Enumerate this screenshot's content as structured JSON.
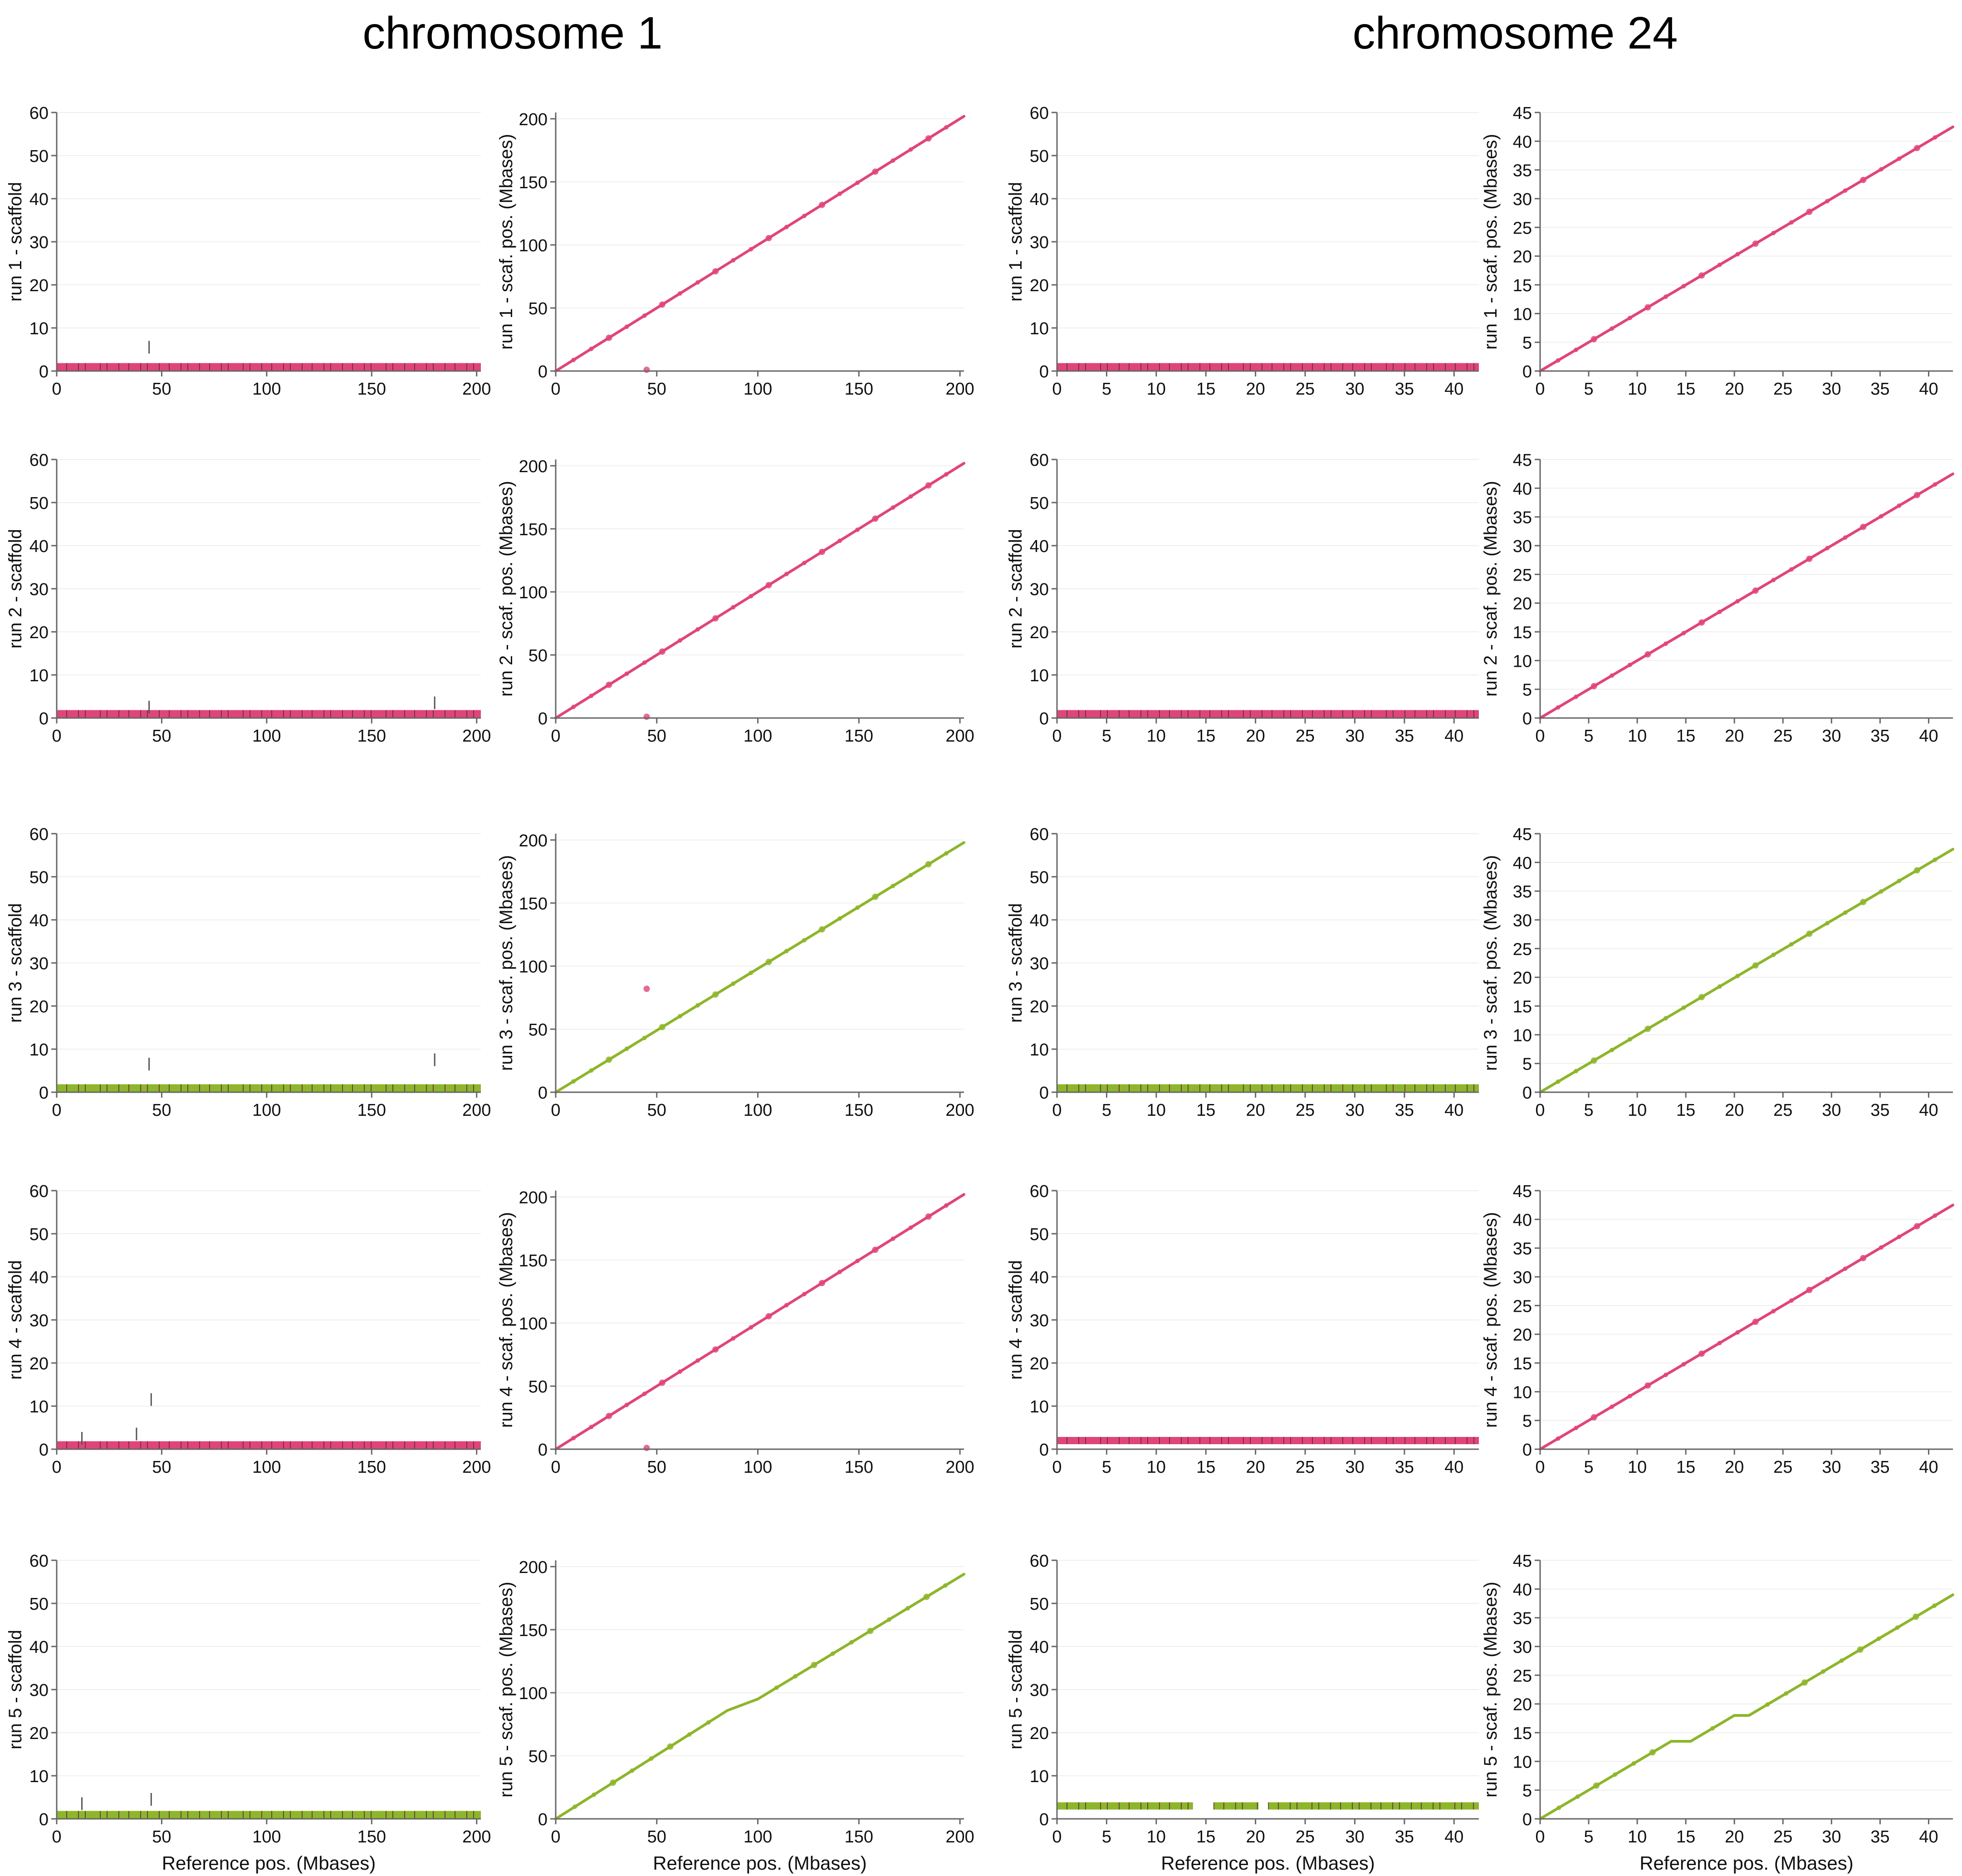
{
  "titles": {
    "chr1": "chromosome 1",
    "chr24": "chromosome 24"
  },
  "colors": {
    "pink": "#e0457a",
    "green": "#8db62a",
    "track": "#5b2a3d",
    "axis": "#666666",
    "grid": "#efefef"
  },
  "chart_data": [
    {
      "type": "scatter",
      "chromosome": "chromosome 1",
      "run": 1,
      "plot": "scaffold",
      "color": "pink",
      "xlabel": "",
      "ylabel": "run 1 - scaffold",
      "xlim": [
        0,
        202
      ],
      "ylim": [
        0,
        60
      ],
      "xticks": [
        0,
        50,
        100,
        150,
        200
      ],
      "yticks": [
        0,
        10,
        20,
        30,
        40,
        50,
        60
      ],
      "series": [
        {
          "points": [
            [
              0,
              1
            ],
            [
              202,
              1
            ]
          ]
        }
      ],
      "outliers": [
        [
          44,
          7
        ]
      ]
    },
    {
      "type": "line",
      "chromosome": "chromosome 1",
      "run": 1,
      "plot": "position",
      "color": "pink",
      "xlabel": "",
      "ylabel": "run 1 - scaf. pos. (Mbases)",
      "xlim": [
        0,
        202
      ],
      "ylim": [
        0,
        205
      ],
      "xticks": [
        0,
        50,
        100,
        150,
        200
      ],
      "yticks": [
        0,
        50,
        100,
        150,
        200
      ],
      "series": [
        {
          "points": [
            [
              0,
              0
            ],
            [
              202,
              202
            ]
          ]
        }
      ],
      "outliers": [
        [
          45,
          1
        ]
      ]
    },
    {
      "type": "scatter",
      "chromosome": "chromosome 24",
      "run": 1,
      "plot": "scaffold",
      "color": "pink",
      "xlabel": "",
      "ylabel": "run 1 - scaffold",
      "xlim": [
        0,
        42.5
      ],
      "ylim": [
        0,
        60
      ],
      "xticks": [
        0,
        5,
        10,
        15,
        20,
        25,
        30,
        35,
        40
      ],
      "yticks": [
        0,
        10,
        20,
        30,
        40,
        50,
        60
      ],
      "series": [
        {
          "points": [
            [
              0,
              1
            ],
            [
              42.5,
              1
            ]
          ]
        }
      ],
      "outliers": []
    },
    {
      "type": "line",
      "chromosome": "chromosome 24",
      "run": 1,
      "plot": "position",
      "color": "pink",
      "xlabel": "",
      "ylabel": "run 1 - scaf. pos. (Mbases)",
      "xlim": [
        0,
        42.5
      ],
      "ylim": [
        0,
        45
      ],
      "xticks": [
        0,
        5,
        10,
        15,
        20,
        25,
        30,
        35,
        40
      ],
      "yticks": [
        0,
        5,
        10,
        15,
        20,
        25,
        30,
        35,
        40,
        45
      ],
      "series": [
        {
          "points": [
            [
              0,
              0
            ],
            [
              42.5,
              42.5
            ]
          ]
        }
      ],
      "outliers": []
    },
    {
      "type": "scatter",
      "chromosome": "chromosome 1",
      "run": 2,
      "plot": "scaffold",
      "color": "pink",
      "xlabel": "",
      "ylabel": "run 2 - scaffold",
      "xlim": [
        0,
        202
      ],
      "ylim": [
        0,
        60
      ],
      "xticks": [
        0,
        50,
        100,
        150,
        200
      ],
      "yticks": [
        0,
        10,
        20,
        30,
        40,
        50,
        60
      ],
      "series": [
        {
          "points": [
            [
              0,
              1
            ],
            [
              202,
              1
            ]
          ]
        }
      ],
      "outliers": [
        [
          44,
          4
        ],
        [
          180,
          5
        ]
      ]
    },
    {
      "type": "line",
      "chromosome": "chromosome 1",
      "run": 2,
      "plot": "position",
      "color": "pink",
      "xlabel": "",
      "ylabel": "run 2 - scaf. pos. (Mbases)",
      "xlim": [
        0,
        202
      ],
      "ylim": [
        0,
        205
      ],
      "xticks": [
        0,
        50,
        100,
        150,
        200
      ],
      "yticks": [
        0,
        50,
        100,
        150,
        200
      ],
      "series": [
        {
          "points": [
            [
              0,
              0
            ],
            [
              202,
              202
            ]
          ]
        }
      ],
      "outliers": [
        [
          45,
          1
        ]
      ]
    },
    {
      "type": "scatter",
      "chromosome": "chromosome 24",
      "run": 2,
      "plot": "scaffold",
      "color": "pink",
      "xlabel": "",
      "ylabel": "run 2 - scaffold",
      "xlim": [
        0,
        42.5
      ],
      "ylim": [
        0,
        60
      ],
      "xticks": [
        0,
        5,
        10,
        15,
        20,
        25,
        30,
        35,
        40
      ],
      "yticks": [
        0,
        10,
        20,
        30,
        40,
        50,
        60
      ],
      "series": [
        {
          "points": [
            [
              0,
              1
            ],
            [
              42.5,
              1
            ]
          ]
        }
      ],
      "outliers": []
    },
    {
      "type": "line",
      "chromosome": "chromosome 24",
      "run": 2,
      "plot": "position",
      "color": "pink",
      "xlabel": "",
      "ylabel": "run 2 - scaf. pos. (Mbases)",
      "xlim": [
        0,
        42.5
      ],
      "ylim": [
        0,
        45
      ],
      "xticks": [
        0,
        5,
        10,
        15,
        20,
        25,
        30,
        35,
        40
      ],
      "yticks": [
        0,
        5,
        10,
        15,
        20,
        25,
        30,
        35,
        40,
        45
      ],
      "series": [
        {
          "points": [
            [
              0,
              0
            ],
            [
              42.5,
              42.5
            ]
          ]
        }
      ],
      "outliers": []
    },
    {
      "type": "scatter",
      "chromosome": "chromosome 1",
      "run": 3,
      "plot": "scaffold",
      "color": "green",
      "xlabel": "",
      "ylabel": "run 3 - scaffold",
      "xlim": [
        0,
        202
      ],
      "ylim": [
        0,
        60
      ],
      "xticks": [
        0,
        50,
        100,
        150,
        200
      ],
      "yticks": [
        0,
        10,
        20,
        30,
        40,
        50,
        60
      ],
      "series": [
        {
          "points": [
            [
              0,
              1
            ],
            [
              202,
              1
            ]
          ]
        }
      ],
      "outliers": [
        [
          44,
          8
        ],
        [
          180,
          9
        ]
      ]
    },
    {
      "type": "line",
      "chromosome": "chromosome 1",
      "run": 3,
      "plot": "position",
      "color": "green",
      "xlabel": "",
      "ylabel": "run 3 - scaf. pos. (Mbases)",
      "xlim": [
        0,
        202
      ],
      "ylim": [
        0,
        205
      ],
      "xticks": [
        0,
        50,
        100,
        150,
        200
      ],
      "yticks": [
        0,
        50,
        100,
        150,
        200
      ],
      "series": [
        {
          "points": [
            [
              0,
              0
            ],
            [
              202,
              198
            ]
          ]
        }
      ],
      "outliers": [
        [
          45,
          82
        ]
      ]
    },
    {
      "type": "scatter",
      "chromosome": "chromosome 24",
      "run": 3,
      "plot": "scaffold",
      "color": "green",
      "xlabel": "",
      "ylabel": "run 3 - scaffold",
      "xlim": [
        0,
        42.5
      ],
      "ylim": [
        0,
        60
      ],
      "xticks": [
        0,
        5,
        10,
        15,
        20,
        25,
        30,
        35,
        40
      ],
      "yticks": [
        0,
        10,
        20,
        30,
        40,
        50,
        60
      ],
      "series": [
        {
          "points": [
            [
              0,
              1
            ],
            [
              42.5,
              1
            ]
          ]
        }
      ],
      "outliers": []
    },
    {
      "type": "line",
      "chromosome": "chromosome 24",
      "run": 3,
      "plot": "position",
      "color": "green",
      "xlabel": "",
      "ylabel": "run 3 - scaf. pos. (Mbases)",
      "xlim": [
        0,
        42.5
      ],
      "ylim": [
        0,
        45
      ],
      "xticks": [
        0,
        5,
        10,
        15,
        20,
        25,
        30,
        35,
        40
      ],
      "yticks": [
        0,
        5,
        10,
        15,
        20,
        25,
        30,
        35,
        40,
        45
      ],
      "series": [
        {
          "points": [
            [
              0,
              0
            ],
            [
              42.5,
              42.3
            ]
          ]
        }
      ],
      "outliers": []
    },
    {
      "type": "scatter",
      "chromosome": "chromosome 1",
      "run": 4,
      "plot": "scaffold",
      "color": "pink",
      "xlabel": "",
      "ylabel": "run 4 - scaffold",
      "xlim": [
        0,
        202
      ],
      "ylim": [
        0,
        60
      ],
      "xticks": [
        0,
        50,
        100,
        150,
        200
      ],
      "yticks": [
        0,
        10,
        20,
        30,
        40,
        50,
        60
      ],
      "series": [
        {
          "points": [
            [
              0,
              1
            ],
            [
              202,
              1
            ]
          ]
        }
      ],
      "outliers": [
        [
          12,
          4
        ],
        [
          38,
          5
        ],
        [
          45,
          13
        ]
      ]
    },
    {
      "type": "line",
      "chromosome": "chromosome 1",
      "run": 4,
      "plot": "position",
      "color": "pink",
      "xlabel": "",
      "ylabel": "run 4 - scaf. pos. (Mbases)",
      "xlim": [
        0,
        202
      ],
      "ylim": [
        0,
        205
      ],
      "xticks": [
        0,
        50,
        100,
        150,
        200
      ],
      "yticks": [
        0,
        50,
        100,
        150,
        200
      ],
      "series": [
        {
          "points": [
            [
              0,
              0
            ],
            [
              202,
              202
            ]
          ]
        }
      ],
      "outliers": [
        [
          45,
          1
        ]
      ]
    },
    {
      "type": "scatter",
      "chromosome": "chromosome 24",
      "run": 4,
      "plot": "scaffold",
      "color": "pink",
      "xlabel": "",
      "ylabel": "run 4 - scaffold",
      "xlim": [
        0,
        42.5
      ],
      "ylim": [
        0,
        60
      ],
      "xticks": [
        0,
        5,
        10,
        15,
        20,
        25,
        30,
        35,
        40
      ],
      "yticks": [
        0,
        10,
        20,
        30,
        40,
        50,
        60
      ],
      "series": [
        {
          "points": [
            [
              0,
              2
            ],
            [
              42.5,
              2
            ]
          ]
        }
      ],
      "outliers": []
    },
    {
      "type": "line",
      "chromosome": "chromosome 24",
      "run": 4,
      "plot": "position",
      "color": "pink",
      "xlabel": "",
      "ylabel": "run 4 - scaf. pos. (Mbases)",
      "xlim": [
        0,
        42.5
      ],
      "ylim": [
        0,
        45
      ],
      "xticks": [
        0,
        5,
        10,
        15,
        20,
        25,
        30,
        35,
        40
      ],
      "yticks": [
        0,
        5,
        10,
        15,
        20,
        25,
        30,
        35,
        40,
        45
      ],
      "series": [
        {
          "points": [
            [
              0,
              0
            ],
            [
              42.5,
              42.5
            ]
          ]
        }
      ],
      "outliers": []
    },
    {
      "type": "scatter",
      "chromosome": "chromosome 1",
      "run": 5,
      "plot": "scaffold",
      "color": "green",
      "xlabel": "Reference pos. (Mbases)",
      "ylabel": "run 5 - scaffold",
      "xlim": [
        0,
        202
      ],
      "ylim": [
        0,
        60
      ],
      "xticks": [
        0,
        50,
        100,
        150,
        200
      ],
      "yticks": [
        0,
        10,
        20,
        30,
        40,
        50,
        60
      ],
      "series": [
        {
          "points": [
            [
              0,
              1
            ],
            [
              202,
              1
            ]
          ]
        }
      ],
      "outliers": [
        [
          12,
          5
        ],
        [
          45,
          6
        ]
      ]
    },
    {
      "type": "line",
      "chromosome": "chromosome 1",
      "run": 5,
      "plot": "position",
      "color": "green",
      "xlabel": "Reference pos. (Mbases)",
      "ylabel": "run 5 - scaf. pos. (Mbases)",
      "xlim": [
        0,
        202
      ],
      "ylim": [
        0,
        205
      ],
      "xticks": [
        0,
        50,
        100,
        150,
        200
      ],
      "yticks": [
        0,
        50,
        100,
        150,
        200
      ],
      "series": [
        {
          "points": [
            [
              0,
              0
            ],
            [
              85,
              86
            ],
            [
              100,
              95
            ],
            [
              202,
              194
            ]
          ]
        }
      ],
      "outliers": []
    },
    {
      "type": "scatter",
      "chromosome": "chromosome 24",
      "run": 5,
      "plot": "scaffold",
      "color": "green",
      "xlabel": "Reference pos. (Mbases)",
      "ylabel": "run 5 - scaffold",
      "xlim": [
        0,
        42.5
      ],
      "ylim": [
        0,
        60
      ],
      "xticks": [
        0,
        5,
        10,
        15,
        20,
        25,
        30,
        35,
        40
      ],
      "yticks": [
        0,
        10,
        20,
        30,
        40,
        50,
        60
      ],
      "series": [
        {
          "points": [
            [
              0,
              3
            ],
            [
              13.7,
              3
            ]
          ]
        },
        {
          "points": [
            [
              15.8,
              3
            ],
            [
              20.3,
              3
            ]
          ]
        },
        {
          "points": [
            [
              21.3,
              3
            ],
            [
              42.5,
              3
            ]
          ]
        }
      ],
      "outliers": []
    },
    {
      "type": "line",
      "chromosome": "chromosome 24",
      "run": 5,
      "plot": "position",
      "color": "green",
      "xlabel": "Reference pos. (Mbases)",
      "ylabel": "run 5 - scaf. pos. (Mbases)",
      "xlim": [
        0,
        42.5
      ],
      "ylim": [
        0,
        45
      ],
      "xticks": [
        0,
        5,
        10,
        15,
        20,
        25,
        30,
        35,
        40
      ],
      "yticks": [
        0,
        5,
        10,
        15,
        20,
        25,
        30,
        35,
        40,
        45
      ],
      "series": [
        {
          "points": [
            [
              0,
              0
            ],
            [
              13.5,
              13.5
            ]
          ]
        },
        {
          "points": [
            [
              13.5,
              13.5
            ],
            [
              15.5,
              13.5
            ]
          ]
        },
        {
          "points": [
            [
              15.5,
              13.5
            ],
            [
              20,
              18
            ]
          ]
        },
        {
          "points": [
            [
              20,
              18
            ],
            [
              21.5,
              18
            ]
          ]
        },
        {
          "points": [
            [
              21.5,
              18
            ],
            [
              42.5,
              39
            ]
          ]
        }
      ],
      "outliers": []
    }
  ]
}
